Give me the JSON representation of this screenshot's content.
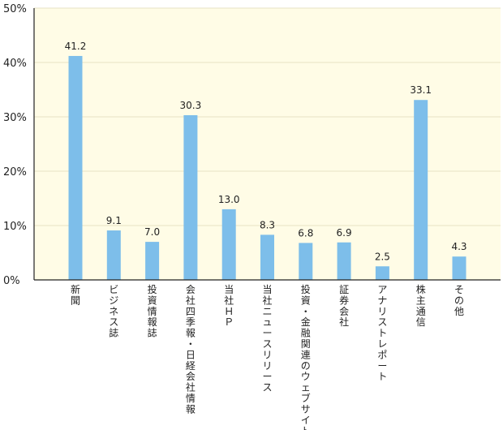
{
  "chart_data": {
    "type": "bar",
    "title": "",
    "xlabel": "",
    "ylabel": "",
    "ylim": [
      0,
      50
    ],
    "yticks": [
      "0%",
      "10%",
      "20%",
      "30%",
      "40%",
      "50%"
    ],
    "grid": true,
    "categories": [
      "新聞",
      "ビジネス誌",
      "投資情報誌",
      "会社四季報・日経会社情報",
      "当社ＨＰ",
      "当社ニュースリリース",
      "投資・金融関連のウェブサイト",
      "証券会社",
      "アナリストレポート",
      "株主通信",
      "その他"
    ],
    "values": [
      41.2,
      9.1,
      7.0,
      30.3,
      13.0,
      8.3,
      6.8,
      6.9,
      2.5,
      33.1,
      4.3
    ],
    "value_labels": [
      "41.2",
      "9.1",
      "7.0",
      "30.3",
      "13.0",
      "8.3",
      "6.8",
      "6.9",
      "2.5",
      "33.1",
      "4.3"
    ],
    "colors": {
      "plot_background": "#FFFCE6",
      "bar": "#7DBEEA",
      "grid": "#E7E2C4",
      "axis": "#222222"
    }
  }
}
